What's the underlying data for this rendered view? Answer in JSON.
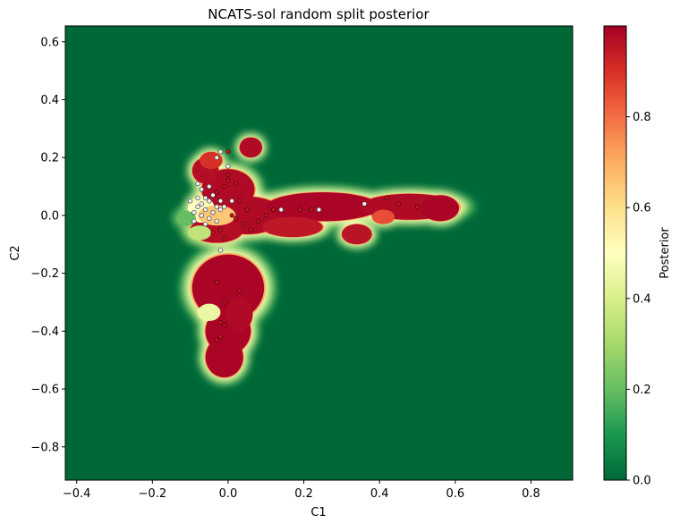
{
  "chart_data": {
    "type": "heatmap",
    "title": "NCATS-sol random split posterior",
    "xlabel": "C1",
    "ylabel": "C2",
    "xlim": [
      -0.43,
      0.91
    ],
    "ylim": [
      -0.915,
      0.655
    ],
    "x_ticks": [
      -0.4,
      -0.2,
      0.0,
      0.2,
      0.4,
      0.6,
      0.8
    ],
    "x_tick_labels": [
      "−0.4",
      "−0.2",
      "0.0",
      "0.2",
      "0.4",
      "0.6",
      "0.8"
    ],
    "y_ticks": [
      0.6,
      0.4,
      0.2,
      0.0,
      -0.2,
      -0.4,
      -0.6,
      -0.8
    ],
    "y_tick_labels": [
      "0.6",
      "0.4",
      "0.2",
      "0.0",
      "−0.2",
      "−0.4",
      "−0.6",
      "−0.8"
    ],
    "colorbar": {
      "label": "Posterior",
      "colormap": "RdYlGn_r",
      "range": [
        0.0,
        1.0
      ],
      "ticks": [
        0.0,
        0.2,
        0.4,
        0.6,
        0.8
      ],
      "tick_labels": [
        "0.0",
        "0.2",
        "0.4",
        "0.6",
        "0.8"
      ]
    },
    "background_value": 0.0,
    "regions": [
      {
        "x": 0.05,
        "y": 0.0,
        "rx": 0.1,
        "ry": 0.065,
        "value": 0.98
      },
      {
        "x": -0.03,
        "y": -0.05,
        "rx": 0.07,
        "ry": 0.045,
        "value": 0.97
      },
      {
        "x": 0.0,
        "y": 0.09,
        "rx": 0.07,
        "ry": 0.07,
        "value": 0.98
      },
      {
        "x": -0.06,
        "y": 0.155,
        "rx": 0.035,
        "ry": 0.045,
        "value": 0.97
      },
      {
        "x": 0.06,
        "y": 0.235,
        "rx": 0.03,
        "ry": 0.035,
        "value": 0.98
      },
      {
        "x": -0.045,
        "y": 0.19,
        "rx": 0.03,
        "ry": 0.03,
        "value": 0.9
      },
      {
        "x": 0.25,
        "y": 0.03,
        "rx": 0.15,
        "ry": 0.05,
        "value": 0.99
      },
      {
        "x": 0.48,
        "y": 0.03,
        "rx": 0.13,
        "ry": 0.045,
        "value": 0.98
      },
      {
        "x": 0.56,
        "y": 0.025,
        "rx": 0.05,
        "ry": 0.045,
        "value": 0.99
      },
      {
        "x": 0.17,
        "y": -0.04,
        "rx": 0.08,
        "ry": 0.035,
        "value": 0.95
      },
      {
        "x": 0.34,
        "y": -0.065,
        "rx": 0.04,
        "ry": 0.035,
        "value": 0.96
      },
      {
        "x": 0.41,
        "y": -0.005,
        "rx": 0.03,
        "ry": 0.025,
        "value": 0.85
      },
      {
        "x": 0.0,
        "y": -0.25,
        "rx": 0.095,
        "ry": 0.115,
        "value": 0.99
      },
      {
        "x": 0.0,
        "y": -0.4,
        "rx": 0.06,
        "ry": 0.08,
        "value": 0.99
      },
      {
        "x": -0.01,
        "y": -0.49,
        "rx": 0.05,
        "ry": 0.07,
        "value": 0.99
      },
      {
        "x": 0.03,
        "y": -0.34,
        "rx": 0.035,
        "ry": 0.06,
        "value": 0.98
      },
      {
        "x": -0.07,
        "y": 0.02,
        "rx": 0.035,
        "ry": 0.045,
        "value": 0.5
      },
      {
        "x": -0.075,
        "y": -0.06,
        "rx": 0.03,
        "ry": 0.025,
        "value": 0.35
      },
      {
        "x": -0.03,
        "y": 0.0,
        "rx": 0.05,
        "ry": 0.035,
        "value": 0.65
      },
      {
        "x": -0.05,
        "y": -0.335,
        "rx": 0.03,
        "ry": 0.03,
        "value": 0.45
      },
      {
        "x": -0.11,
        "y": -0.01,
        "rx": 0.025,
        "ry": 0.025,
        "value": 0.2
      }
    ],
    "points_active": [
      [
        0.0,
        0.14
      ],
      [
        0.0,
        0.12
      ],
      [
        -0.01,
        0.1
      ],
      [
        0.02,
        0.11
      ],
      [
        0.03,
        0.05
      ],
      [
        0.05,
        0.02
      ],
      [
        0.02,
        -0.01
      ],
      [
        0.04,
        -0.03
      ],
      [
        -0.02,
        -0.05
      ],
      [
        -0.04,
        -0.06
      ],
      [
        0.06,
        -0.05
      ],
      [
        0.08,
        -0.02
      ],
      [
        0.1,
        0.0
      ],
      [
        0.12,
        0.02
      ],
      [
        0.01,
        0.0
      ],
      [
        -0.01,
        -0.08
      ],
      [
        0.22,
        0.02
      ],
      [
        0.19,
        0.02
      ],
      [
        0.42,
        0.06
      ],
      [
        0.45,
        0.04
      ],
      [
        0.5,
        0.03
      ],
      [
        -0.03,
        -0.23
      ],
      [
        0.03,
        -0.26
      ],
      [
        -0.02,
        -0.37
      ],
      [
        -0.01,
        -0.38
      ],
      [
        -0.03,
        -0.43
      ],
      [
        -0.02,
        -0.42
      ],
      [
        -0.01,
        -0.3
      ],
      [
        0.0,
        0.22
      ],
      [
        -0.03,
        0.08
      ]
    ],
    "points_inactive": [
      [
        -0.1,
        0.05
      ],
      [
        -0.08,
        0.03
      ],
      [
        -0.06,
        0.02
      ],
      [
        -0.04,
        0.01
      ],
      [
        -0.07,
        0.04
      ],
      [
        -0.05,
        0.05
      ],
      [
        -0.03,
        0.03
      ],
      [
        -0.02,
        0.02
      ],
      [
        -0.09,
        0.01
      ],
      [
        -0.07,
        0.0
      ],
      [
        -0.05,
        -0.01
      ],
      [
        -0.06,
        0.06
      ],
      [
        -0.04,
        0.07
      ],
      [
        -0.02,
        0.05
      ],
      [
        -0.08,
        0.06
      ],
      [
        -0.01,
        0.03
      ],
      [
        -0.05,
        0.1
      ],
      [
        -0.08,
        0.11
      ],
      [
        0.0,
        0.17
      ],
      [
        -0.03,
        0.2
      ],
      [
        -0.02,
        0.22
      ],
      [
        -0.03,
        -0.02
      ],
      [
        0.14,
        0.02
      ],
      [
        0.24,
        0.02
      ],
      [
        0.36,
        0.04
      ],
      [
        -0.06,
        -0.03
      ],
      [
        -0.02,
        -0.12
      ],
      [
        -0.09,
        -0.02
      ],
      [
        0.01,
        0.05
      ],
      [
        -0.07,
        0.09
      ]
    ]
  }
}
